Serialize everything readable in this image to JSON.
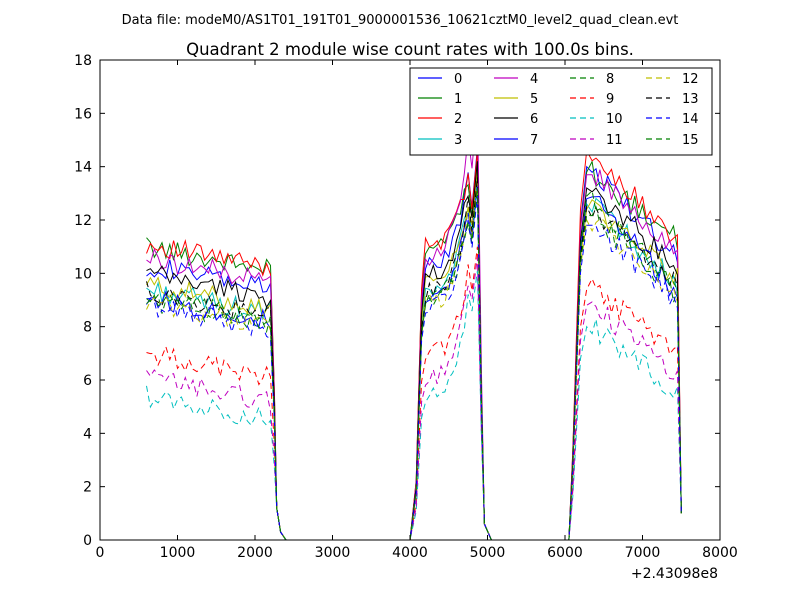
{
  "chart_data": {
    "type": "line",
    "suptitle": "Data file: modeM0/AS1T01_191T01_9000001536_10621cztM0_level2_quad_clean.evt",
    "title": "Quadrant 2 module wise count rates with 100.0s bins.",
    "xlabel": "",
    "ylabel": "",
    "xlim": [
      0,
      8000
    ],
    "ylim": [
      0,
      18
    ],
    "x_offset_label": "+2.43098e8",
    "xticks": [
      0,
      1000,
      2000,
      3000,
      4000,
      5000,
      6000,
      7000,
      8000
    ],
    "xtick_labels": [
      "0",
      "1000",
      "2000",
      "3000",
      "4000",
      "5000",
      "6000",
      "7000",
      "8000"
    ],
    "yticks": [
      0,
      2,
      4,
      6,
      8,
      10,
      12,
      14,
      16,
      18
    ],
    "ytick_labels": [
      "0",
      "2",
      "4",
      "6",
      "8",
      "10",
      "12",
      "14",
      "16",
      "18"
    ],
    "legend_position": "top-right",
    "legend_columns": 4,
    "segments": [
      {
        "x_start": 600,
        "x_end": 2200,
        "x_drop": [
          2250,
          2300,
          2350,
          2400
        ]
      },
      {
        "x_start": 4000,
        "x_end": 5000
      },
      {
        "x_start": 6100,
        "x_end": 7500
      }
    ],
    "series": [
      {
        "name": "0",
        "color": "#0000ff",
        "style": "solid",
        "level": 10.3,
        "peak2": 14.7,
        "peak3": 14.0
      },
      {
        "name": "1",
        "color": "#008000",
        "style": "solid",
        "level": 11.0,
        "peak2": 14.3,
        "peak3": 13.8
      },
      {
        "name": "2",
        "color": "#ff0000",
        "style": "solid",
        "level": 11.1,
        "peak2": 14.6,
        "peak3": 14.6
      },
      {
        "name": "3",
        "color": "#00bfbf",
        "style": "solid",
        "level": 9.4,
        "peak2": 13.6,
        "peak3": 12.6
      },
      {
        "name": "4",
        "color": "#bf00bf",
        "style": "solid",
        "level": 10.6,
        "peak2": 16.4,
        "peak3": 13.7
      },
      {
        "name": "5",
        "color": "#bfbf00",
        "style": "solid",
        "level": 9.6,
        "peak2": 13.9,
        "peak3": 12.4
      },
      {
        "name": "6",
        "color": "#000000",
        "style": "solid",
        "level": 10.0,
        "peak2": 14.2,
        "peak3": 13.2
      },
      {
        "name": "7",
        "color": "#0000ff",
        "style": "solid",
        "level": 9.1,
        "peak2": 13.3,
        "peak3": 12.8
      },
      {
        "name": "8",
        "color": "#008000",
        "style": "dashed",
        "level": 9.0,
        "peak2": 13.1,
        "peak3": 12.9
      },
      {
        "name": "9",
        "color": "#ff0000",
        "style": "dashed",
        "level": 7.0,
        "peak2": 11.0,
        "peak3": 9.4
      },
      {
        "name": "10",
        "color": "#00bfbf",
        "style": "dashed",
        "level": 5.4,
        "peak2": 10.1,
        "peak3": 8.0
      },
      {
        "name": "11",
        "color": "#bf00bf",
        "style": "dashed",
        "level": 6.1,
        "peak2": 10.6,
        "peak3": 8.8
      },
      {
        "name": "12",
        "color": "#bfbf00",
        "style": "dashed",
        "level": 8.9,
        "peak2": 13.4,
        "peak3": 12.0
      },
      {
        "name": "13",
        "color": "#000000",
        "style": "dashed",
        "level": 9.3,
        "peak2": 13.6,
        "peak3": 12.5
      },
      {
        "name": "14",
        "color": "#0000ff",
        "style": "dashed",
        "level": 8.8,
        "peak2": 12.9,
        "peak3": 11.8
      },
      {
        "name": "15",
        "color": "#008000",
        "style": "dashed",
        "level": 9.1,
        "peak2": 13.2,
        "peak3": 12.2
      }
    ]
  }
}
